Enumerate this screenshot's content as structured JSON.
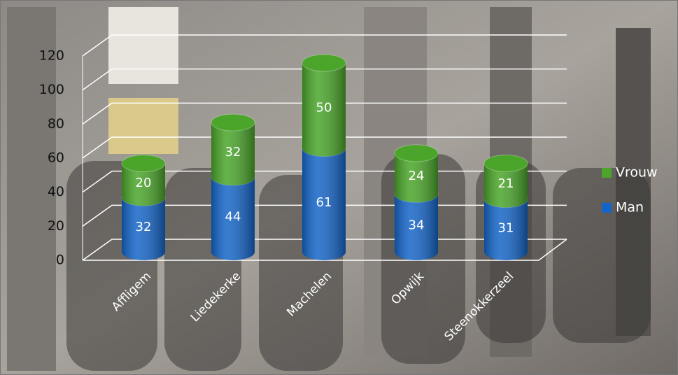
{
  "chart_data": {
    "type": "bar3d-stacked-cylinder",
    "categories": [
      "Affligem",
      "Liedekerke",
      "Machelen",
      "Opwijk",
      "Steenokkerzeel"
    ],
    "series": [
      {
        "name": "Man",
        "color": "#1565c8",
        "values": [
          32,
          44,
          61,
          34,
          31
        ]
      },
      {
        "name": "Vrouw",
        "color": "#4aa52a",
        "values": [
          20,
          32,
          50,
          24,
          21
        ]
      }
    ],
    "ylim": [
      0,
      120
    ],
    "yticks": [
      0,
      20,
      40,
      60,
      80,
      100,
      120
    ],
    "grid": true,
    "legend": "right"
  }
}
